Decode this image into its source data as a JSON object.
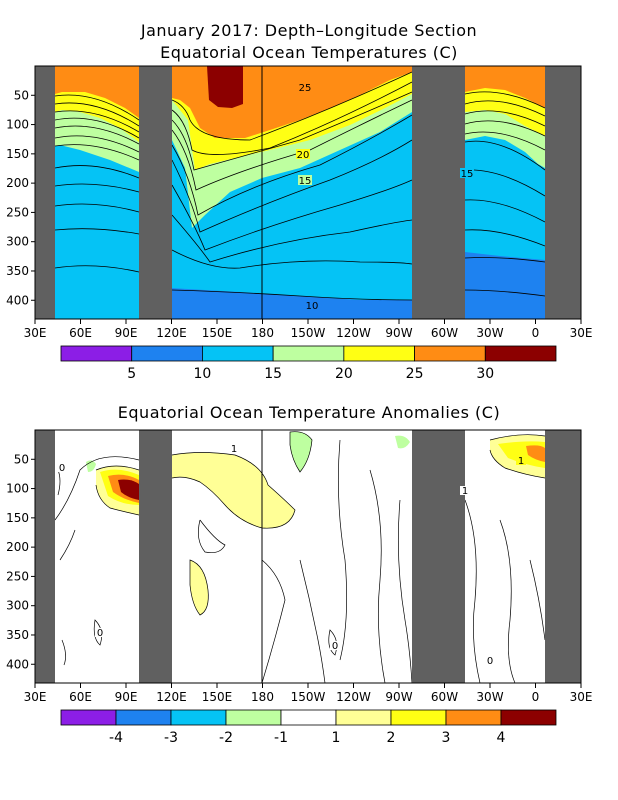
{
  "chart_data": [
    {
      "type": "heatmap",
      "title": "January 2017: Depth–Longitude Section",
      "subtitle": "Equatorial Ocean Temperatures (C)",
      "x_ticks": [
        "30E",
        "60E",
        "90E",
        "120E",
        "150E",
        "180",
        "150W",
        "120W",
        "90W",
        "60W",
        "30W",
        "0",
        "30E"
      ],
      "y_ticks": [
        "50",
        "100",
        "150",
        "200",
        "250",
        "300",
        "350",
        "400"
      ],
      "ylim": [
        432,
        0
      ],
      "colorbar": {
        "bounds": [
          0,
          5,
          10,
          15,
          20,
          25,
          30,
          35
        ],
        "labels": [
          "5",
          "10",
          "15",
          "20",
          "25",
          "30"
        ],
        "colors": [
          "#8c1ee6",
          "#1e82f0",
          "#05c3f5",
          "#beffa0",
          "#ffff14",
          "#ff8c14",
          "#8c0000"
        ]
      },
      "contour_labels": [
        "25",
        "20",
        "15",
        "15",
        "10"
      ],
      "land_masks": [
        "Africa",
        "Maritime Continent",
        "Americas",
        "Africa"
      ]
    },
    {
      "type": "heatmap",
      "title": "Equatorial Ocean Temperature Anomalies (C)",
      "x_ticks": [
        "30E",
        "60E",
        "90E",
        "120E",
        "150E",
        "180",
        "150W",
        "120W",
        "90W",
        "60W",
        "30W",
        "0",
        "30E"
      ],
      "y_ticks": [
        "50",
        "100",
        "150",
        "200",
        "250",
        "300",
        "350",
        "400"
      ],
      "ylim": [
        432,
        0
      ],
      "colorbar": {
        "bounds": [
          -5,
          -4,
          -3,
          -2,
          -1,
          1,
          2,
          3,
          4,
          5
        ],
        "labels": [
          "-4",
          "-3",
          "-2",
          "-1",
          "1",
          "2",
          "3",
          "4"
        ],
        "colors": [
          "#8c1ee6",
          "#1e82f0",
          "#05c3f5",
          "#beffa0",
          "#ffffff",
          "#ffff96",
          "#ffff14",
          "#ff8c14",
          "#8c0000"
        ]
      },
      "contour_labels": [
        "1",
        "0",
        "0",
        "0",
        "0",
        "1",
        "1"
      ],
      "anomaly_regions": [
        {
          "lon": "90E",
          "depth": 110,
          "value": 4
        },
        {
          "lon": "150E",
          "depth": 70,
          "value": 1
        },
        {
          "lon": "170W",
          "depth": 130,
          "value": 1
        },
        {
          "lon": "150E",
          "depth": 290,
          "value": 1
        },
        {
          "lon": "10W",
          "depth": 45,
          "value": 3
        },
        {
          "lon": "130W",
          "depth": 50,
          "value": -1
        },
        {
          "lon": "70E",
          "depth": 70,
          "value": -1
        }
      ]
    }
  ]
}
